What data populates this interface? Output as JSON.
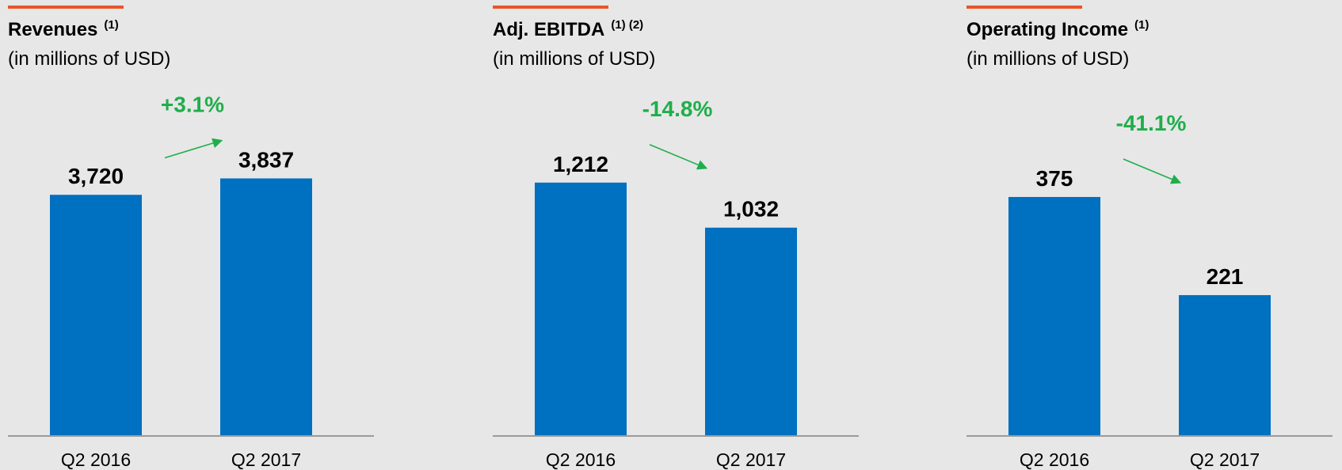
{
  "chart_data": [
    {
      "type": "bar",
      "title": "Revenues",
      "title_note": "(1)",
      "subtitle": "(in millions of USD)",
      "categories": [
        "Q2 2016",
        "Q2 2017"
      ],
      "values": [
        3720,
        3837
      ],
      "value_labels": [
        "3,720",
        "3,837"
      ],
      "color": "#0070c0",
      "ylim": [
        2000,
        4500
      ],
      "annotation": "+3.1%"
    },
    {
      "type": "bar",
      "title": "Adj. EBITDA",
      "title_note": "(1) (2)",
      "subtitle": "(in millions of USD)",
      "categories": [
        "Q2 2016",
        "Q2 2017"
      ],
      "values": [
        1212,
        1032
      ],
      "value_labels": [
        "1,212",
        "1,032"
      ],
      "color": "#0070c0",
      "ylim": [
        200,
        1600
      ],
      "annotation": "-14.8%"
    },
    {
      "type": "bar",
      "title": "Operating Income",
      "title_note": "(1)",
      "subtitle": "(in millions of USD)",
      "categories": [
        "Q2 2016",
        "Q2 2017"
      ],
      "values": [
        375,
        221
      ],
      "value_labels": [
        "375",
        "221"
      ],
      "color": "#0070c0",
      "ylim": [
        0,
        550
      ],
      "annotation": "-41.1%"
    }
  ]
}
